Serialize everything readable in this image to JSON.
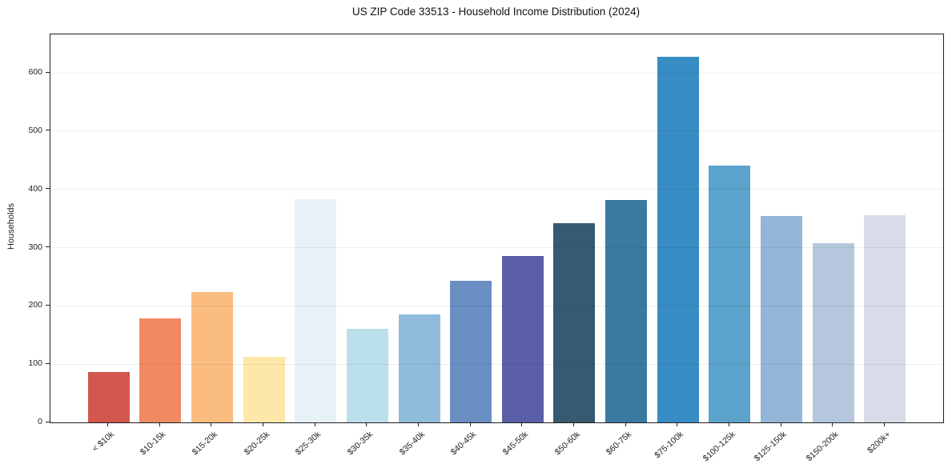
{
  "chart_data": {
    "type": "bar",
    "title": "US ZIP Code 33513 - Household Income Distribution (2024)",
    "xlabel": "",
    "ylabel": "Households",
    "ylim": [
      0,
      666
    ],
    "yticks": [
      0,
      100,
      200,
      300,
      400,
      500,
      600
    ],
    "grid": "horizontal",
    "legend": "none",
    "categories": [
      "< $10k",
      "$10-15k",
      "$15-20k",
      "$20-25k",
      "$25-30k",
      "$30-35k",
      "$35-40k",
      "$40-45k",
      "$45-50k",
      "$50-60k",
      "$60-75k",
      "$75-100k",
      "$100-125k",
      "$125-150k",
      "$150-200k",
      "$200k+"
    ],
    "values": [
      86,
      179,
      224,
      113,
      383,
      161,
      186,
      243,
      286,
      342,
      382,
      627,
      441,
      354,
      307,
      356
    ],
    "colors": [
      "#d4574e",
      "#f08a63",
      "#fabc7f",
      "#fde8a9",
      "#e7f2f7",
      "#bcdfec",
      "#90bcdc",
      "#6a8fc3",
      "#5a5fa8",
      "#365a70",
      "#3a7aa0",
      "#378cc3",
      "#5ba3cb",
      "#93b6d7",
      "#b5c7dd",
      "#d8dbe8"
    ]
  }
}
